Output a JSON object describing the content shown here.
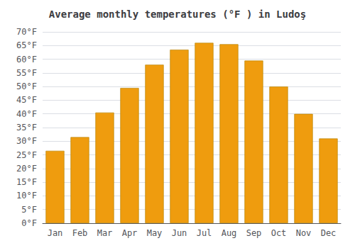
{
  "chart_data": {
    "type": "bar",
    "title": "Average monthly temperatures (°F ) in Ludoş",
    "categories": [
      "Jan",
      "Feb",
      "Mar",
      "Apr",
      "May",
      "Jun",
      "Jul",
      "Aug",
      "Sep",
      "Oct",
      "Nov",
      "Dec"
    ],
    "values": [
      26.5,
      31.5,
      40.5,
      49.5,
      58.0,
      63.5,
      66.0,
      65.5,
      59.5,
      50.0,
      40.0,
      31.0
    ],
    "color": "#ef9c0e",
    "ylim": [
      0,
      70
    ],
    "yticks": [
      {
        "value": 0,
        "label": "0°F"
      },
      {
        "value": 5,
        "label": "5°F"
      },
      {
        "value": 10,
        "label": "10°F"
      },
      {
        "value": 15,
        "label": "15°F"
      },
      {
        "value": 20,
        "label": "20°F"
      },
      {
        "value": 25,
        "label": "25°F"
      },
      {
        "value": 30,
        "label": "30°F"
      },
      {
        "value": 35,
        "label": "35°F"
      },
      {
        "value": 40,
        "label": "40°F"
      },
      {
        "value": 45,
        "label": "45°F"
      },
      {
        "value": 50,
        "label": "50°F"
      },
      {
        "value": 55,
        "label": "55°F"
      },
      {
        "value": 60,
        "label": "60°F"
      },
      {
        "value": 65,
        "label": "65°F"
      },
      {
        "value": 70,
        "label": "70°F"
      }
    ],
    "grid": true
  }
}
